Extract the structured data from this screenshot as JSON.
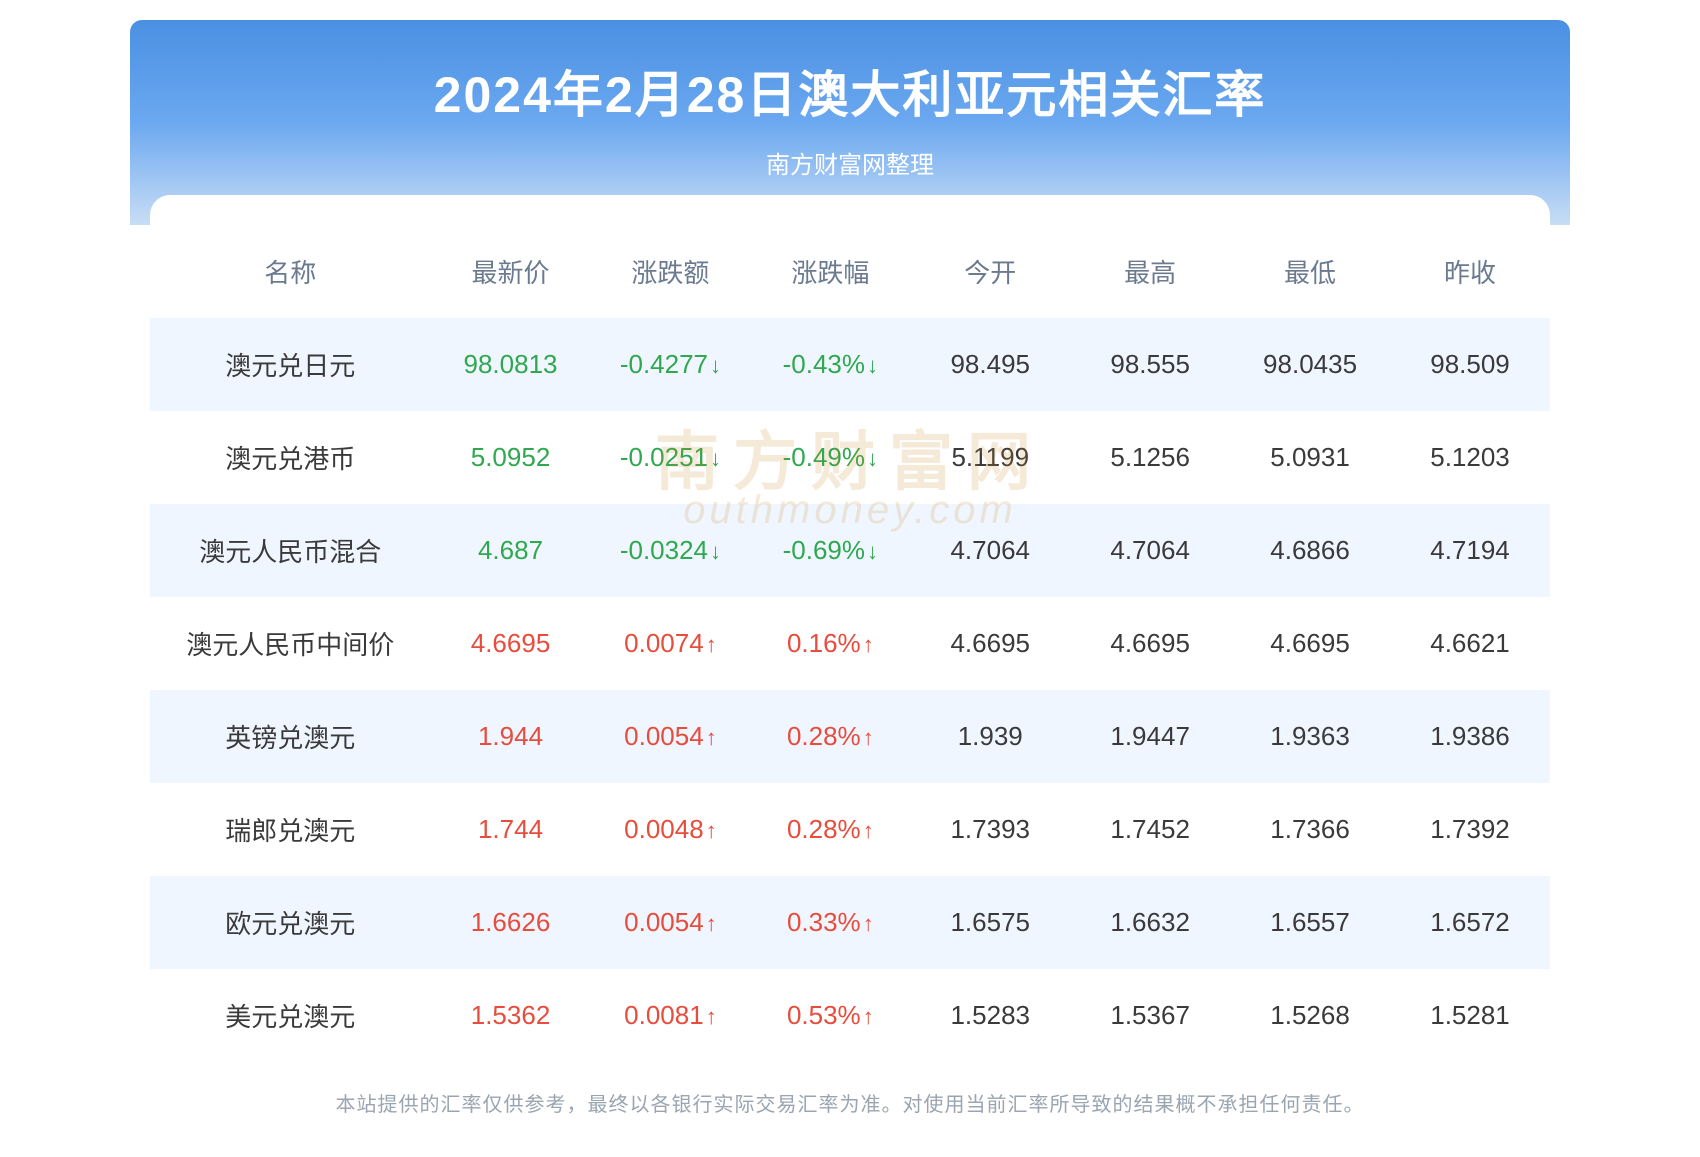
{
  "header": {
    "title": "2024年2月28日澳大利亚元相关汇率",
    "subtitle": "南方财富网整理"
  },
  "watermark": {
    "cn": "南方财富网",
    "en": "outhmoney.com"
  },
  "table": {
    "columns": [
      "名称",
      "最新价",
      "涨跌额",
      "涨跌幅",
      "今开",
      "最高",
      "最低",
      "昨收"
    ],
    "column_widths_pct": [
      20,
      11.4,
      11.4,
      11.4,
      11.4,
      11.4,
      11.4,
      11.4
    ],
    "header_fontsize": 26,
    "header_color": "#6b7a8f",
    "cell_fontsize": 26,
    "row_odd_bg": "#f0f6ff",
    "row_even_bg": "#ffffff",
    "up_color": "#e74c3c",
    "down_color": "#2fa84f",
    "neutral_color": "#3a3a3a",
    "rows": [
      {
        "name": "澳元兑日元",
        "last": "98.0813",
        "chg": "-0.4277",
        "chg_pct": "-0.43%",
        "dir": "down",
        "open": "98.495",
        "high": "98.555",
        "low": "98.0435",
        "prev": "98.509"
      },
      {
        "name": "澳元兑港币",
        "last": "5.0952",
        "chg": "-0.0251",
        "chg_pct": "-0.49%",
        "dir": "down",
        "open": "5.1199",
        "high": "5.1256",
        "low": "5.0931",
        "prev": "5.1203"
      },
      {
        "name": "澳元人民币混合",
        "last": "4.687",
        "chg": "-0.0324",
        "chg_pct": "-0.69%",
        "dir": "down",
        "open": "4.7064",
        "high": "4.7064",
        "low": "4.6866",
        "prev": "4.7194"
      },
      {
        "name": "澳元人民币中间价",
        "last": "4.6695",
        "chg": "0.0074",
        "chg_pct": "0.16%",
        "dir": "up",
        "open": "4.6695",
        "high": "4.6695",
        "low": "4.6695",
        "prev": "4.6621"
      },
      {
        "name": "英镑兑澳元",
        "last": "1.944",
        "chg": "0.0054",
        "chg_pct": "0.28%",
        "dir": "up",
        "open": "1.939",
        "high": "1.9447",
        "low": "1.9363",
        "prev": "1.9386"
      },
      {
        "name": "瑞郎兑澳元",
        "last": "1.744",
        "chg": "0.0048",
        "chg_pct": "0.28%",
        "dir": "up",
        "open": "1.7393",
        "high": "1.7452",
        "low": "1.7366",
        "prev": "1.7392"
      },
      {
        "name": "欧元兑澳元",
        "last": "1.6626",
        "chg": "0.0054",
        "chg_pct": "0.33%",
        "dir": "up",
        "open": "1.6575",
        "high": "1.6632",
        "low": "1.6557",
        "prev": "1.6572"
      },
      {
        "name": "美元兑澳元",
        "last": "1.5362",
        "chg": "0.0081",
        "chg_pct": "0.53%",
        "dir": "up",
        "open": "1.5283",
        "high": "1.5367",
        "low": "1.5268",
        "prev": "1.5281"
      }
    ]
  },
  "disclaimer": "本站提供的汇率仅供参考，最终以各银行实际交易汇率为准。对使用当前汇率所导致的结果概不承担任何责任。",
  "style": {
    "header_gradient_top": "#4a90e2",
    "header_gradient_mid": "#6ba8f0",
    "header_gradient_bottom": "#c8ddf5",
    "title_color": "#ffffff",
    "title_fontsize": 50,
    "subtitle_fontsize": 24,
    "disclaimer_color": "#9aa5b1",
    "disclaimer_fontsize": 20,
    "watermark_color": "#c98a2a",
    "watermark_opacity": 0.18,
    "container_width": 1440,
    "arrow_up": "↑",
    "arrow_down": "↓"
  }
}
